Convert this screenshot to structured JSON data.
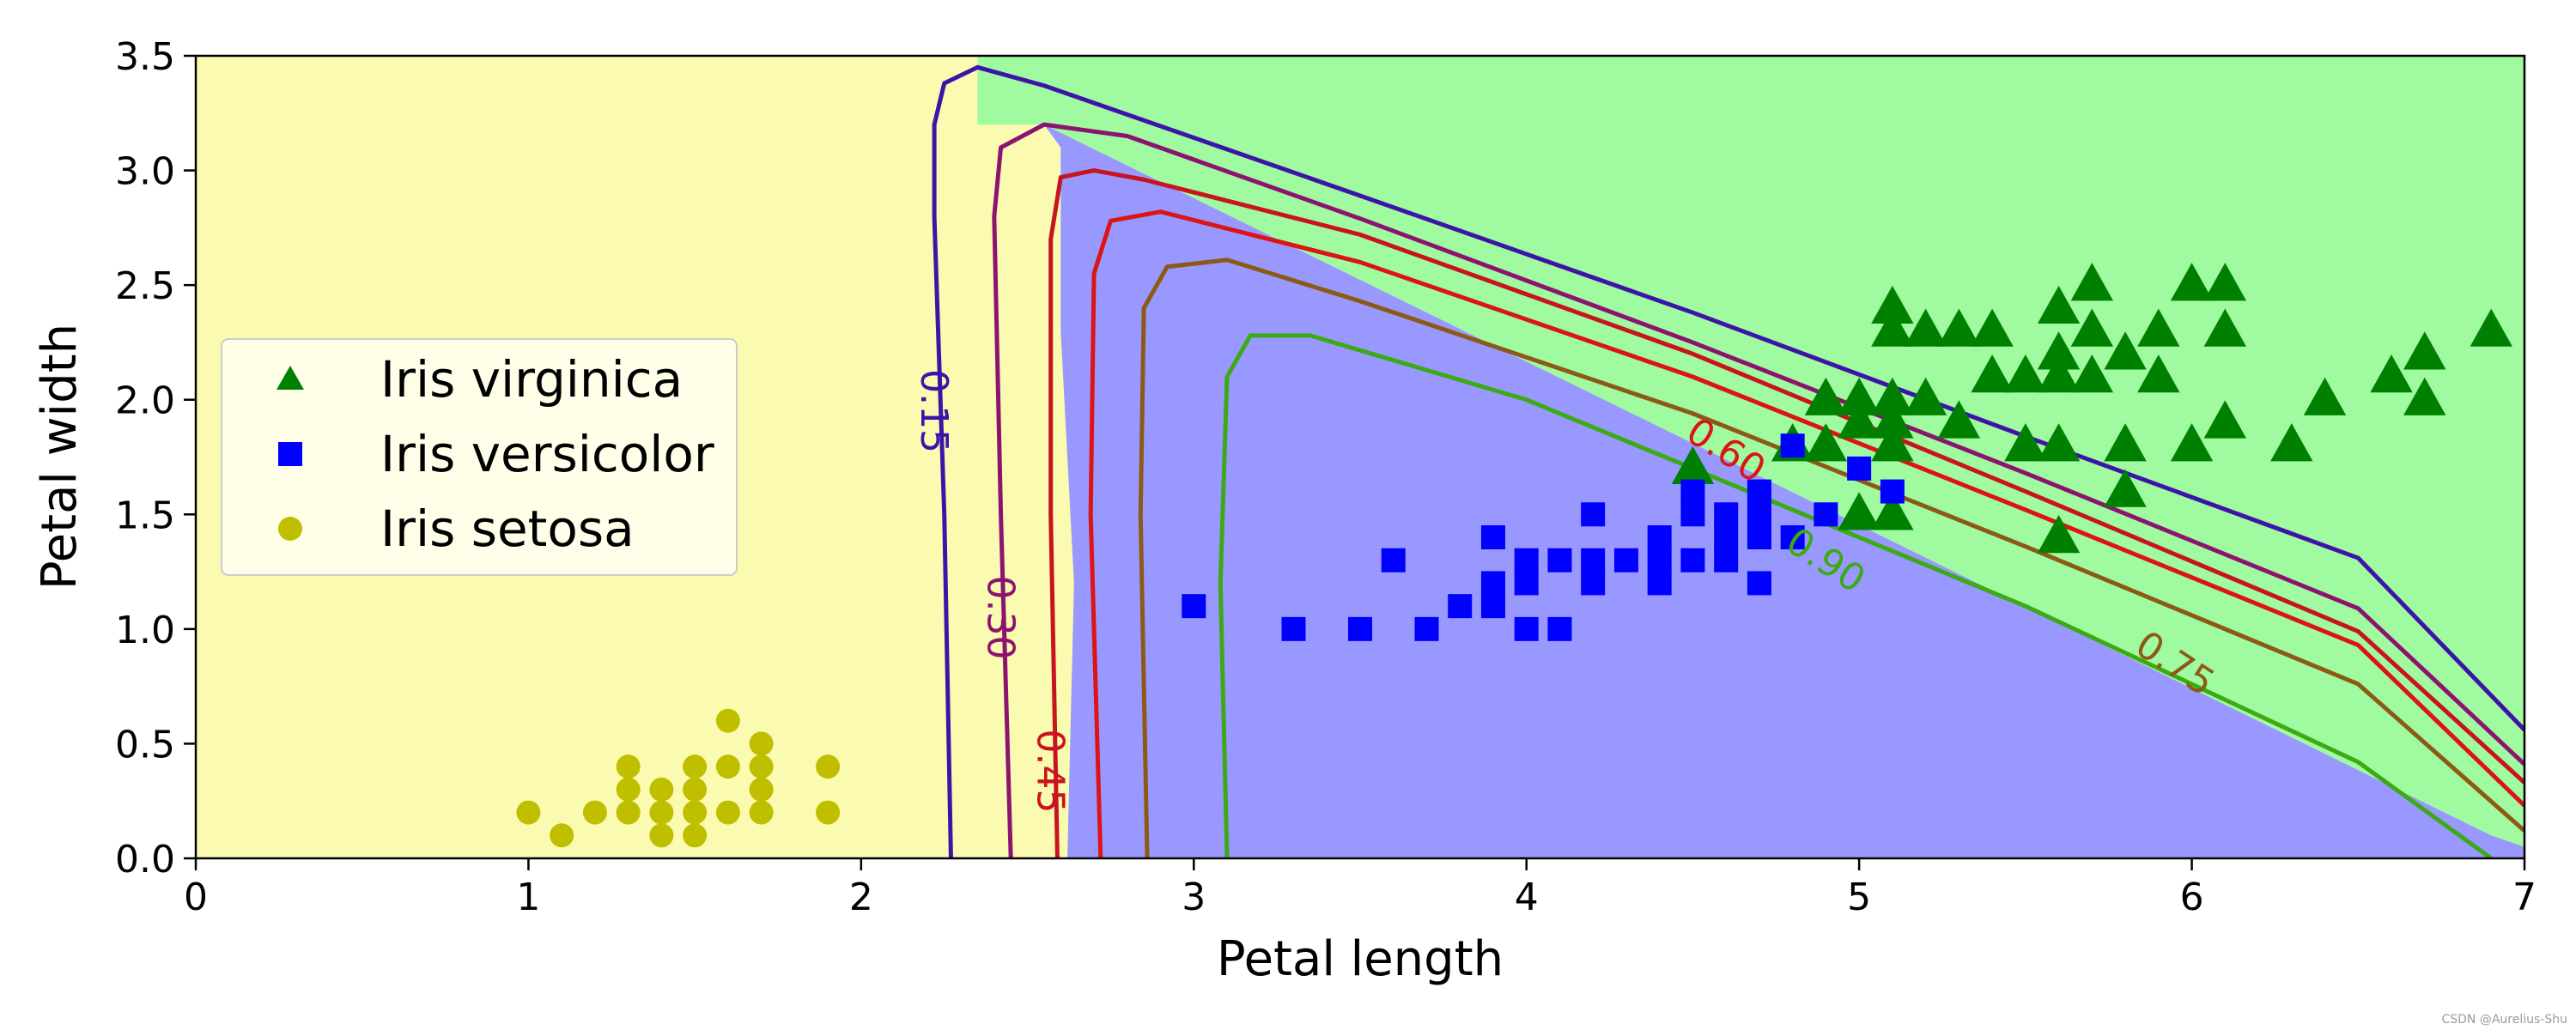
{
  "chart_data": {
    "type": "scatter",
    "title": "",
    "xlabel": "Petal length",
    "ylabel": "Petal width",
    "xlim": [
      0,
      7
    ],
    "ylim": [
      0,
      3.5
    ],
    "xticks": [
      0,
      1,
      2,
      3,
      4,
      5,
      6,
      7
    ],
    "yticks": [
      0.0,
      0.5,
      1.0,
      1.5,
      2.0,
      2.5,
      3.0,
      3.5
    ],
    "xtick_labels": [
      "0",
      "1",
      "2",
      "3",
      "4",
      "5",
      "6",
      "7"
    ],
    "ytick_labels": [
      "0.0",
      "0.5",
      "1.0",
      "1.5",
      "2.0",
      "2.5",
      "3.0",
      "3.5"
    ],
    "grid": false,
    "legend": {
      "location": "center-left",
      "entries": [
        {
          "label": "Iris virginica",
          "marker": "triangle",
          "color": "#008000"
        },
        {
          "label": "Iris versicolor",
          "marker": "square",
          "color": "#0000ff"
        },
        {
          "label": "Iris setosa",
          "marker": "circle",
          "color": "#bfbf00"
        }
      ]
    },
    "regions": [
      {
        "name": "setosa-region",
        "color": "#fafab0"
      },
      {
        "name": "versicolor-region",
        "color": "#9898ff"
      },
      {
        "name": "virginica-region",
        "color": "#a0faa0"
      }
    ],
    "boundaries": {
      "setosa_versicolor": [
        [
          2.62,
          0.0
        ],
        [
          2.64,
          1.2
        ],
        [
          2.6,
          2.3
        ],
        [
          2.6,
          3.1
        ],
        [
          2.55,
          3.2
        ]
      ],
      "versicolor_virginica": [
        [
          2.55,
          3.2
        ],
        [
          6.9,
          0.1
        ],
        [
          7.0,
          0.05
        ]
      ]
    },
    "contours": [
      {
        "label": "0.15",
        "color": "#3d14a8",
        "points": [
          [
            2.27,
            0
          ],
          [
            2.25,
            1.5
          ],
          [
            2.22,
            2.8
          ],
          [
            2.22,
            3.2
          ],
          [
            2.25,
            3.38
          ],
          [
            2.35,
            3.45
          ],
          [
            2.55,
            3.37
          ],
          [
            3.5,
            2.89
          ],
          [
            4.5,
            2.38
          ],
          [
            5.5,
            1.84
          ],
          [
            6.5,
            1.31
          ],
          [
            7.0,
            0.56
          ]
        ]
      },
      {
        "label": "0.30",
        "color": "#8c1470",
        "points": [
          [
            2.45,
            0
          ],
          [
            2.42,
            1.5
          ],
          [
            2.4,
            2.8
          ],
          [
            2.42,
            3.1
          ],
          [
            2.55,
            3.2
          ],
          [
            2.8,
            3.15
          ],
          [
            3.5,
            2.79
          ],
          [
            4.5,
            2.25
          ],
          [
            5.5,
            1.68
          ],
          [
            6.5,
            1.09
          ],
          [
            7.0,
            0.41
          ]
        ]
      },
      {
        "label": "0.45",
        "color": "#c8141e",
        "points": [
          [
            2.59,
            0
          ],
          [
            2.57,
            1.5
          ],
          [
            2.57,
            2.7
          ],
          [
            2.6,
            2.97
          ],
          [
            2.7,
            3.0
          ],
          [
            2.85,
            2.96
          ],
          [
            3.5,
            2.72
          ],
          [
            4.5,
            2.2
          ],
          [
            5.5,
            1.6
          ],
          [
            6.5,
            0.99
          ],
          [
            7.0,
            0.33
          ]
        ]
      },
      {
        "label": "0.60",
        "color": "#dc1414",
        "points": [
          [
            2.72,
            0
          ],
          [
            2.69,
            1.5
          ],
          [
            2.7,
            2.55
          ],
          [
            2.75,
            2.78
          ],
          [
            2.9,
            2.82
          ],
          [
            3.5,
            2.6
          ],
          [
            4.5,
            2.1
          ],
          [
            5.5,
            1.52
          ],
          [
            6.5,
            0.93
          ],
          [
            7.0,
            0.23
          ]
        ]
      },
      {
        "label": "0.75",
        "color": "#8c5a14",
        "points": [
          [
            2.86,
            0
          ],
          [
            2.84,
            1.5
          ],
          [
            2.85,
            2.4
          ],
          [
            2.92,
            2.58
          ],
          [
            3.1,
            2.61
          ],
          [
            3.5,
            2.43
          ],
          [
            4.5,
            1.94
          ],
          [
            5.5,
            1.36
          ],
          [
            6.5,
            0.76
          ],
          [
            7.0,
            0.12
          ]
        ]
      },
      {
        "label": "0.90",
        "color": "#3caa14",
        "points": [
          [
            3.1,
            0
          ],
          [
            3.08,
            1.2
          ],
          [
            3.1,
            2.1
          ],
          [
            3.17,
            2.28
          ],
          [
            3.35,
            2.28
          ],
          [
            4.0,
            2.0
          ],
          [
            4.5,
            1.7
          ],
          [
            5.5,
            1.1
          ],
          [
            6.5,
            0.42
          ],
          [
            6.9,
            0.0
          ]
        ]
      }
    ],
    "series": [
      {
        "name": "Iris virginica",
        "marker": "triangle",
        "color": "#008000",
        "points": [
          [
            4.5,
            1.7
          ],
          [
            4.8,
            1.8
          ],
          [
            4.9,
            1.8
          ],
          [
            4.9,
            2.0
          ],
          [
            5.0,
            1.5
          ],
          [
            5.0,
            1.9
          ],
          [
            5.0,
            2.0
          ],
          [
            5.1,
            1.5
          ],
          [
            5.1,
            1.8
          ],
          [
            5.1,
            1.9
          ],
          [
            5.1,
            2.0
          ],
          [
            5.1,
            2.3
          ],
          [
            5.1,
            2.4
          ],
          [
            5.2,
            2.0
          ],
          [
            5.2,
            2.3
          ],
          [
            5.3,
            1.9
          ],
          [
            5.3,
            2.3
          ],
          [
            5.4,
            2.1
          ],
          [
            5.4,
            2.3
          ],
          [
            5.5,
            1.8
          ],
          [
            5.5,
            2.1
          ],
          [
            5.6,
            1.4
          ],
          [
            5.6,
            1.8
          ],
          [
            5.6,
            2.1
          ],
          [
            5.6,
            2.2
          ],
          [
            5.6,
            2.4
          ],
          [
            5.7,
            2.1
          ],
          [
            5.7,
            2.3
          ],
          [
            5.7,
            2.5
          ],
          [
            5.8,
            1.6
          ],
          [
            5.8,
            1.8
          ],
          [
            5.8,
            2.2
          ],
          [
            5.9,
            2.1
          ],
          [
            5.9,
            2.3
          ],
          [
            6.0,
            1.8
          ],
          [
            6.0,
            2.5
          ],
          [
            6.1,
            1.9
          ],
          [
            6.1,
            2.3
          ],
          [
            6.1,
            2.5
          ],
          [
            6.3,
            1.8
          ],
          [
            6.4,
            2.0
          ],
          [
            6.6,
            2.1
          ],
          [
            6.7,
            2.0
          ],
          [
            6.7,
            2.2
          ],
          [
            6.9,
            2.3
          ]
        ]
      },
      {
        "name": "Iris versicolor",
        "marker": "square",
        "color": "#0000ff",
        "points": [
          [
            3.0,
            1.1
          ],
          [
            3.3,
            1.0
          ],
          [
            3.5,
            1.0
          ],
          [
            3.6,
            1.3
          ],
          [
            3.7,
            1.0
          ],
          [
            3.8,
            1.1
          ],
          [
            3.9,
            1.1
          ],
          [
            3.9,
            1.2
          ],
          [
            3.9,
            1.4
          ],
          [
            4.0,
            1.0
          ],
          [
            4.0,
            1.2
          ],
          [
            4.0,
            1.3
          ],
          [
            4.1,
            1.0
          ],
          [
            4.1,
            1.3
          ],
          [
            4.2,
            1.2
          ],
          [
            4.2,
            1.3
          ],
          [
            4.2,
            1.5
          ],
          [
            4.3,
            1.3
          ],
          [
            4.4,
            1.2
          ],
          [
            4.4,
            1.3
          ],
          [
            4.4,
            1.4
          ],
          [
            4.5,
            1.3
          ],
          [
            4.5,
            1.5
          ],
          [
            4.5,
            1.6
          ],
          [
            4.6,
            1.3
          ],
          [
            4.6,
            1.4
          ],
          [
            4.6,
            1.5
          ],
          [
            4.7,
            1.2
          ],
          [
            4.7,
            1.4
          ],
          [
            4.7,
            1.5
          ],
          [
            4.7,
            1.6
          ],
          [
            4.8,
            1.4
          ],
          [
            4.8,
            1.8
          ],
          [
            4.9,
            1.5
          ],
          [
            5.0,
            1.7
          ],
          [
            5.1,
            1.6
          ]
        ]
      },
      {
        "name": "Iris setosa",
        "marker": "circle",
        "color": "#bfbf00",
        "points": [
          [
            1.0,
            0.2
          ],
          [
            1.1,
            0.1
          ],
          [
            1.2,
            0.2
          ],
          [
            1.3,
            0.2
          ],
          [
            1.3,
            0.3
          ],
          [
            1.3,
            0.4
          ],
          [
            1.4,
            0.1
          ],
          [
            1.4,
            0.2
          ],
          [
            1.4,
            0.3
          ],
          [
            1.5,
            0.1
          ],
          [
            1.5,
            0.2
          ],
          [
            1.5,
            0.3
          ],
          [
            1.5,
            0.4
          ],
          [
            1.6,
            0.2
          ],
          [
            1.6,
            0.4
          ],
          [
            1.6,
            0.6
          ],
          [
            1.7,
            0.2
          ],
          [
            1.7,
            0.3
          ],
          [
            1.7,
            0.4
          ],
          [
            1.7,
            0.5
          ],
          [
            1.9,
            0.2
          ],
          [
            1.9,
            0.4
          ]
        ]
      }
    ]
  },
  "watermark": "CSDN @Aurelius-Shu"
}
